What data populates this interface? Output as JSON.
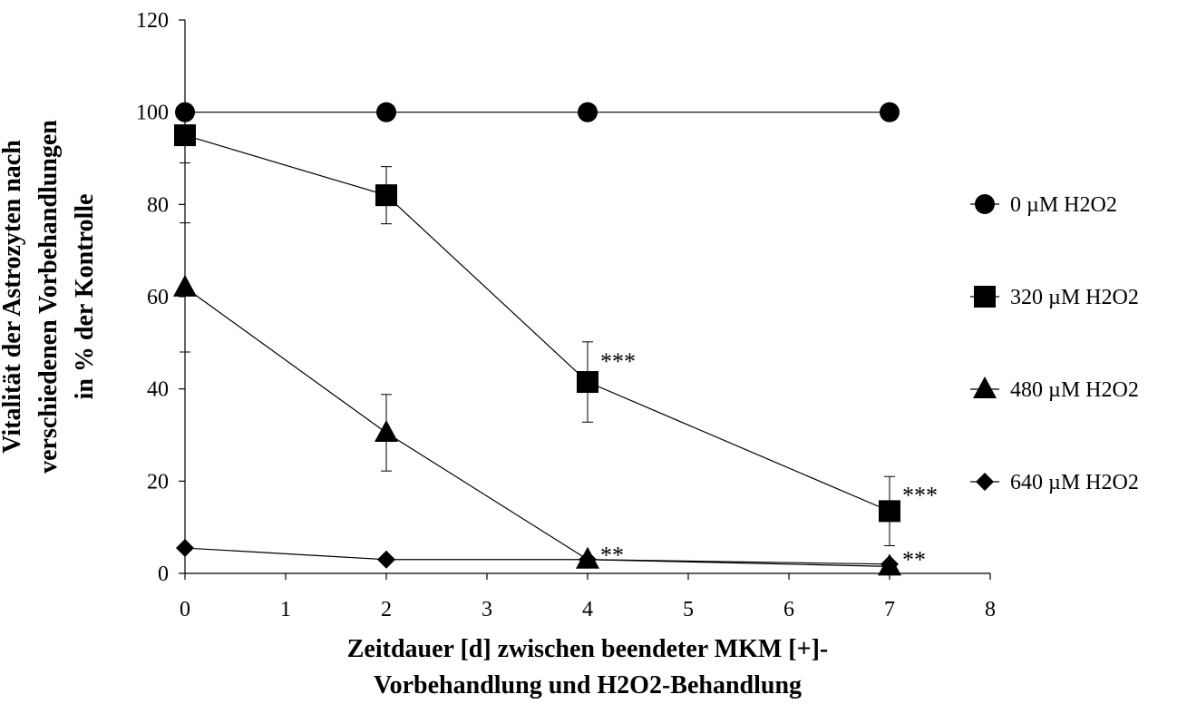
{
  "chart_data": {
    "type": "line",
    "title": "",
    "xlabel_lines": [
      "Zeitdauer [d] zwischen beendeter MKM [+]-",
      "Vorbehandlung und H2O2-Behandlung"
    ],
    "ylabel_lines": [
      "Vitalität der Astrozyten nach",
      "verschiedenen Vorbehandlungen",
      "in % der Kontrolle"
    ],
    "xlim": [
      0,
      8
    ],
    "ylim": [
      0,
      120
    ],
    "x_ticks": [
      "0",
      "1",
      "2",
      "3",
      "4",
      "5",
      "6",
      "7",
      "8"
    ],
    "y_ticks": [
      "0",
      "20",
      "40",
      "60",
      "80",
      "100",
      "120"
    ],
    "legend_position": "right",
    "series": [
      {
        "name": "0 µM H2O2",
        "marker": "circle",
        "x": [
          0,
          2,
          4,
          7
        ],
        "y": [
          100,
          100,
          100,
          100
        ],
        "err": [
          0,
          0,
          0,
          0
        ]
      },
      {
        "name": "320 µM H2O2",
        "marker": "square",
        "x": [
          0,
          2,
          4,
          7
        ],
        "y": [
          95,
          82,
          41.5,
          13.5
        ],
        "err": [
          6,
          6.2,
          8.7,
          7.5
        ]
      },
      {
        "name": "480 µM H2O2",
        "marker": "triangle",
        "x": [
          0,
          2,
          4,
          7
        ],
        "y": [
          62,
          30.5,
          3,
          1.5
        ],
        "err": [
          14,
          8.3,
          0,
          0
        ]
      },
      {
        "name": "640 µM H2O2",
        "marker": "diamond",
        "x": [
          0,
          2,
          4,
          7
        ],
        "y": [
          5.5,
          3,
          3,
          2
        ],
        "err": [
          0,
          0,
          0,
          0
        ]
      }
    ],
    "annotations": [
      {
        "text": "***",
        "x": 4,
        "y": 47
      },
      {
        "text": "***",
        "x": 7,
        "y": 18
      },
      {
        "text": "**",
        "x": 4,
        "y": 5
      },
      {
        "text": "**",
        "x": 7,
        "y": 4
      }
    ]
  }
}
